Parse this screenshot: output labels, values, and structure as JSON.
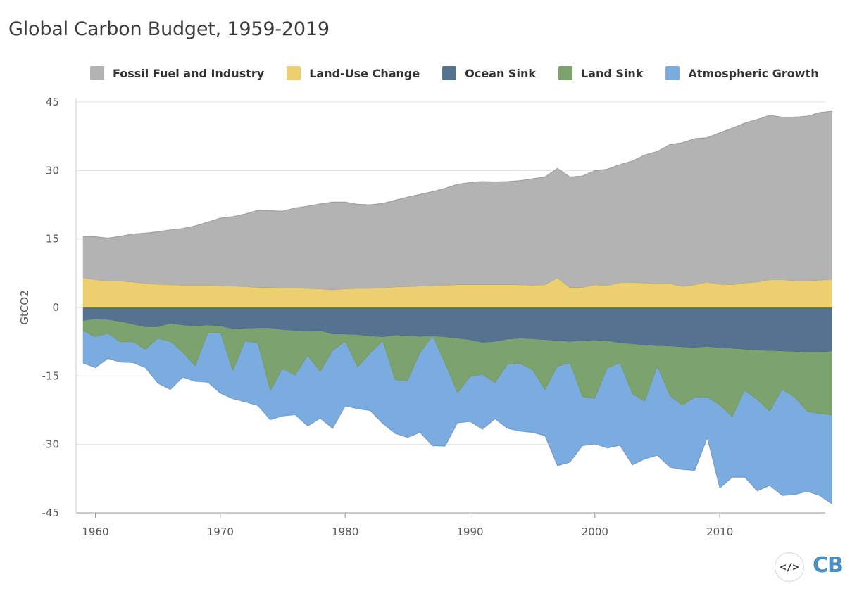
{
  "chart_data": {
    "type": "area",
    "title": "Global Carbon Budget, 1959-2019",
    "xlabel": "",
    "ylabel": "GtCO2",
    "xlim": [
      1959,
      2019
    ],
    "ylim": [
      -45,
      45
    ],
    "y_ticks": [
      "45",
      "30",
      "15",
      "0",
      "-15",
      "-30",
      "-45"
    ],
    "x_ticks": [
      "1960",
      "1970",
      "1980",
      "1990",
      "2000",
      "2010"
    ],
    "grid": "horizontal",
    "legend_position": "top",
    "x": [
      1959,
      1960,
      1961,
      1962,
      1963,
      1964,
      1965,
      1966,
      1967,
      1968,
      1969,
      1970,
      1971,
      1972,
      1973,
      1974,
      1975,
      1976,
      1977,
      1978,
      1979,
      1980,
      1981,
      1982,
      1983,
      1984,
      1985,
      1986,
      1987,
      1988,
      1989,
      1990,
      1991,
      1992,
      1993,
      1994,
      1995,
      1996,
      1997,
      1998,
      1999,
      2000,
      2001,
      2002,
      2003,
      2004,
      2005,
      2006,
      2007,
      2008,
      2009,
      2010,
      2011,
      2012,
      2013,
      2014,
      2015,
      2016,
      2017,
      2018,
      2019
    ],
    "series": [
      {
        "name": "Fossil Fuel and Industry",
        "color": "#b3b3b3",
        "values": [
          9.0,
          9.4,
          9.4,
          9.8,
          10.5,
          11.0,
          11.5,
          12.0,
          12.4,
          13.0,
          13.8,
          14.8,
          15.2,
          15.9,
          16.9,
          16.8,
          16.8,
          17.5,
          18.0,
          18.6,
          19.2,
          19.0,
          18.4,
          18.3,
          18.5,
          19.0,
          19.6,
          20.1,
          20.6,
          21.2,
          22.0,
          22.4,
          22.6,
          22.5,
          22.6,
          22.8,
          23.3,
          23.6,
          24.0,
          24.2,
          24.4,
          25.0,
          25.5,
          25.8,
          26.6,
          28.0,
          29.0,
          30.4,
          31.5,
          32.0,
          31.6,
          33.2,
          34.3,
          35.0,
          35.6,
          36.0,
          35.6,
          35.8,
          36.0,
          36.7,
          36.8
        ]
      },
      {
        "name": "Land-Use Change",
        "color": "#eccf6e",
        "values": [
          6.6,
          6.1,
          5.8,
          5.8,
          5.6,
          5.3,
          5.1,
          5.0,
          4.9,
          4.9,
          4.9,
          4.8,
          4.7,
          4.6,
          4.4,
          4.4,
          4.3,
          4.3,
          4.2,
          4.1,
          3.9,
          4.1,
          4.2,
          4.2,
          4.3,
          4.5,
          4.6,
          4.7,
          4.8,
          4.9,
          5.0,
          5.0,
          5.0,
          5.0,
          5.0,
          5.0,
          4.9,
          5.0,
          6.5,
          4.4,
          4.4,
          5.0,
          4.8,
          5.5,
          5.5,
          5.4,
          5.2,
          5.3,
          4.6,
          5.0,
          5.6,
          5.1,
          5.0,
          5.4,
          5.6,
          6.1,
          6.1,
          5.9,
          5.9,
          6.0,
          6.2
        ]
      },
      {
        "name": "Ocean Sink",
        "color": "#55728f",
        "values": [
          -2.9,
          -2.5,
          -2.7,
          -3.1,
          -3.7,
          -4.3,
          -4.3,
          -3.5,
          -3.9,
          -4.1,
          -3.9,
          -4.1,
          -4.7,
          -4.6,
          -4.5,
          -4.5,
          -4.9,
          -5.1,
          -5.2,
          -5.1,
          -5.9,
          -5.9,
          -6.0,
          -6.3,
          -6.5,
          -6.1,
          -6.2,
          -6.4,
          -6.3,
          -6.5,
          -6.8,
          -7.1,
          -7.7,
          -7.5,
          -7.0,
          -6.8,
          -6.9,
          -7.1,
          -7.3,
          -7.5,
          -7.3,
          -7.2,
          -7.3,
          -7.8,
          -8.0,
          -8.3,
          -8.4,
          -8.5,
          -8.7,
          -8.8,
          -8.6,
          -8.9,
          -9.0,
          -9.2,
          -9.4,
          -9.5,
          -9.6,
          -9.7,
          -9.8,
          -9.8,
          -9.6
        ]
      },
      {
        "name": "Land Sink",
        "color": "#7ca36d",
        "values": [
          -2.2,
          -4.0,
          -3.0,
          -4.5,
          -3.8,
          -5.0,
          -2.5,
          -4.0,
          -6.0,
          -8.8,
          -1.8,
          -1.4,
          -9.3,
          -2.8,
          -3.3,
          -13.8,
          -8.5,
          -9.8,
          -5.4,
          -9.0,
          -3.6,
          -1.6,
          -7.1,
          -3.8,
          -0.9,
          -9.8,
          -9.9,
          -3.6,
          0.0,
          -5.8,
          -12.0,
          -8.1,
          -7.0,
          -9.0,
          -5.5,
          -5.5,
          -6.8,
          -11.0,
          -5.6,
          -4.7,
          -12.3,
          -12.8,
          -6.0,
          -4.4,
          -11.0,
          -12.3,
          -4.6,
          -10.8,
          -12.8,
          -10.9,
          -11.1,
          -12.5,
          -15.0,
          -9.0,
          -10.8,
          -13.3,
          -8.4,
          -10.0,
          -13.0,
          -13.5,
          -14.0
        ]
      },
      {
        "name": "Atmospheric Growth",
        "color": "#7aace0",
        "values": [
          -7.1,
          -6.7,
          -5.5,
          -4.4,
          -4.6,
          -3.9,
          -9.8,
          -10.5,
          -5.4,
          -3.3,
          -10.7,
          -13.3,
          -6.0,
          -13.3,
          -13.7,
          -6.3,
          -10.4,
          -8.6,
          -15.4,
          -10.2,
          -17.0,
          -14.1,
          -9.1,
          -12.5,
          -18.0,
          -11.7,
          -12.4,
          -17.4,
          -24.0,
          -18.1,
          -6.5,
          -9.8,
          -12.0,
          -7.9,
          -14.0,
          -14.8,
          -13.7,
          -10.0,
          -21.8,
          -21.7,
          -10.7,
          -9.9,
          -17.5,
          -18.0,
          -15.5,
          -12.6,
          -19.4,
          -15.7,
          -14.0,
          -16.0,
          -8.9,
          -18.2,
          -13.2,
          -19.0,
          -20.0,
          -16.2,
          -23.2,
          -21.3,
          -17.5,
          -17.9,
          -19.5
        ]
      }
    ]
  },
  "branding": {
    "embed_glyph": "</>",
    "logo_text": "CB"
  }
}
